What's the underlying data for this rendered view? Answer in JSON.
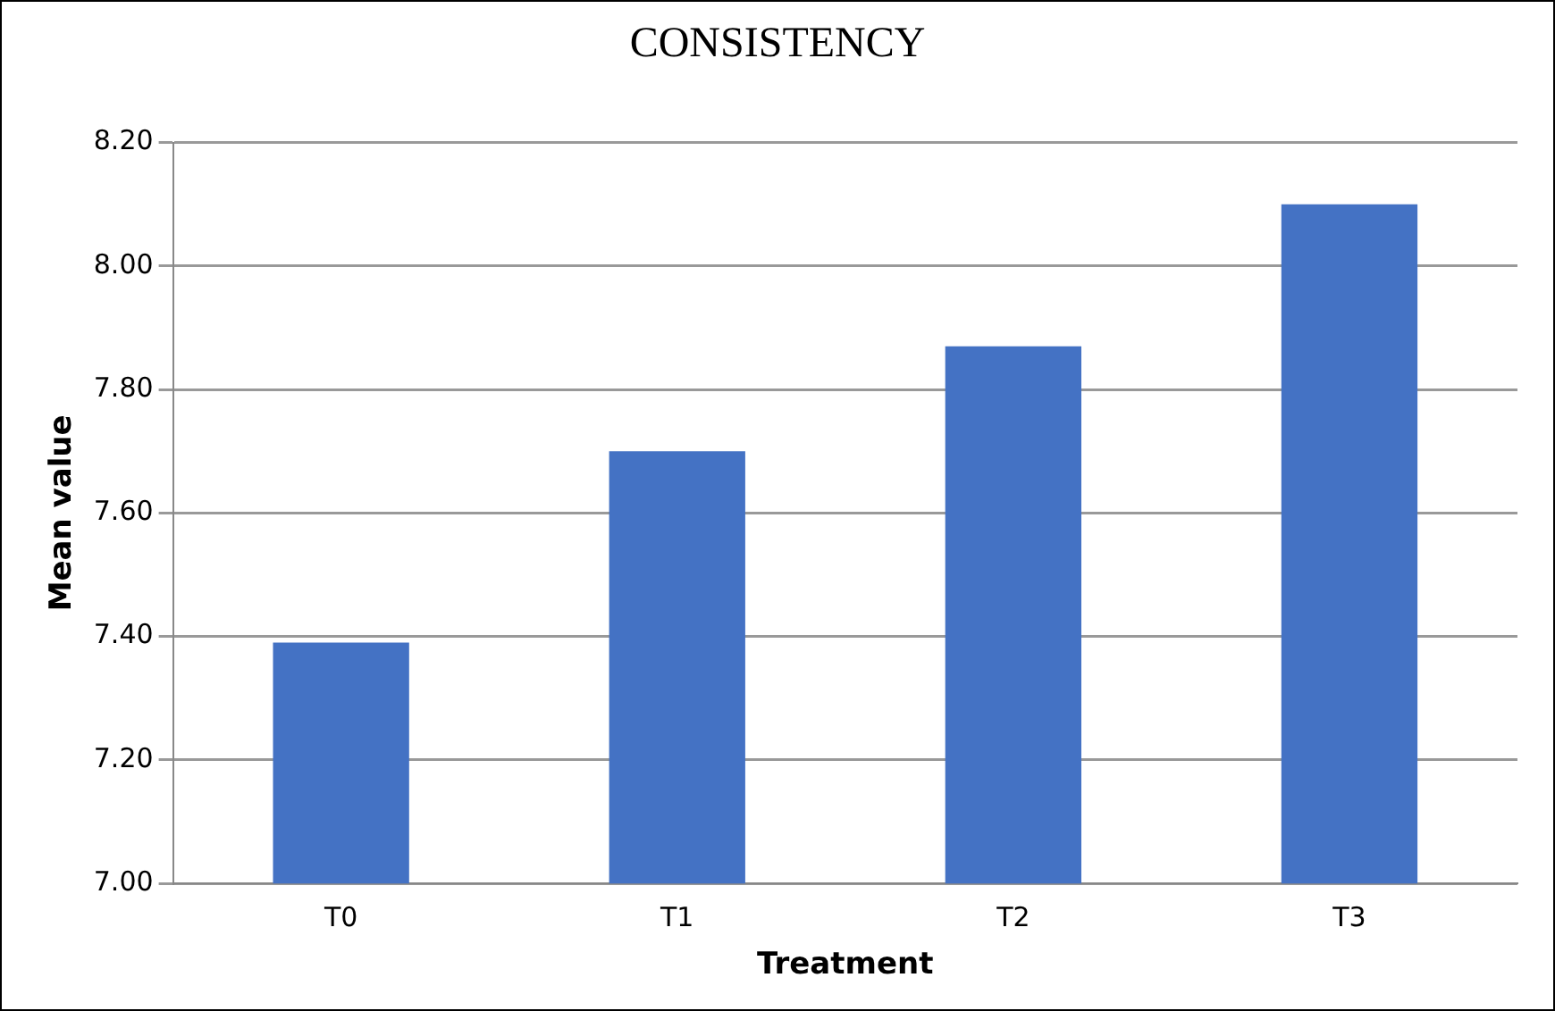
{
  "chart_data": {
    "type": "bar",
    "title": "CONSISTENCY",
    "xlabel": "Treatment",
    "ylabel": "Mean value",
    "categories": [
      "T0",
      "T1",
      "T2",
      "T3"
    ],
    "values": [
      7.39,
      7.7,
      7.87,
      8.1
    ],
    "color": "#4472c4",
    "ylim": [
      7,
      8.2
    ],
    "yticks": [
      {
        "value": 7,
        "label": "7.00"
      },
      {
        "value": 7.2,
        "label": "7.20"
      },
      {
        "value": 7.4,
        "label": "7.40"
      },
      {
        "value": 7.6,
        "label": "7.60"
      },
      {
        "value": 7.8,
        "label": "7.80"
      },
      {
        "value": 8,
        "label": "8.00"
      },
      {
        "value": 8.2,
        "label": "8.20"
      }
    ],
    "grid": true,
    "legend": false
  }
}
